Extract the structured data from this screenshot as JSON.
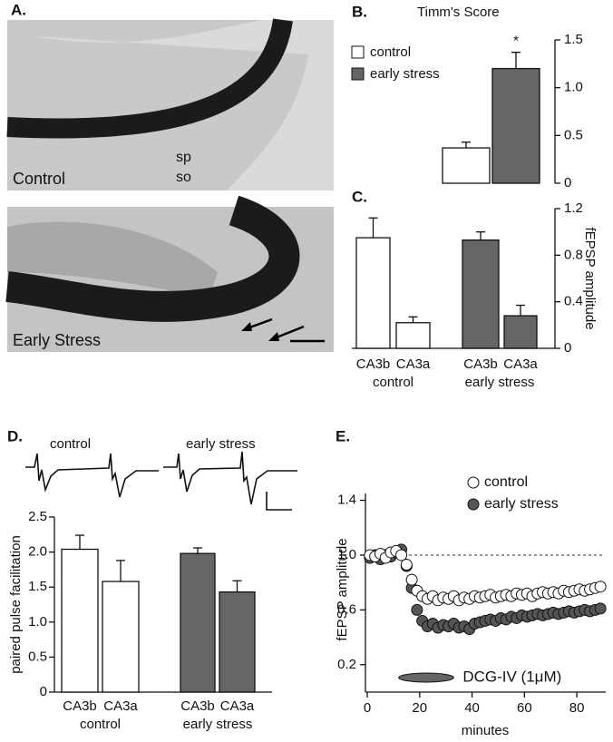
{
  "panel_labels": [
    "A.",
    "B.",
    "C.",
    "D.",
    "E."
  ],
  "micrographs": {
    "control_label": "Control",
    "sp": "sp",
    "so": "so",
    "stress_label": "Early Stress"
  },
  "chart_data": [
    {
      "type": "bar",
      "title": "Timm's Score",
      "legend": "left",
      "significance": "*",
      "series": [
        {
          "name": "control",
          "color": "#ffffff",
          "values": [
            0.37
          ],
          "errors": [
            0.06
          ]
        },
        {
          "name": "early stress",
          "color": "#666666",
          "values": [
            1.2
          ],
          "errors": [
            0.17
          ]
        }
      ],
      "ylim": [
        0,
        1.5
      ],
      "yticks": [
        0,
        0.5,
        {
          "value": 1,
          "label": "1.0"
        },
        1.5
      ]
    },
    {
      "type": "bar",
      "y_label": "fEPSP amplitude",
      "categories": [
        "CA3b",
        "CA3a"
      ],
      "series": [
        {
          "name": "control",
          "color": "#ffffff",
          "values": [
            0.95,
            0.22
          ],
          "errors": [
            0.17,
            0.05
          ]
        },
        {
          "name": "early stress",
          "color": "#666666",
          "values": [
            0.93,
            0.28
          ],
          "errors": [
            0.07,
            0.09
          ]
        }
      ],
      "ylim": [
        0,
        1.2
      ],
      "yticks": [
        0,
        0.4,
        0.8,
        1.2
      ]
    },
    {
      "type": "bar",
      "y_label": "paired pulse facilitation",
      "categories": [
        "CA3b",
        "CA3a"
      ],
      "series": [
        {
          "name": "control",
          "color": "#ffffff",
          "values": [
            2.04,
            1.58
          ],
          "errors": [
            0.2,
            0.3
          ]
        },
        {
          "name": "early stress",
          "color": "#666666",
          "values": [
            1.98,
            1.43
          ],
          "errors": [
            0.08,
            0.16
          ]
        }
      ],
      "ylim": [
        0,
        2.5
      ],
      "yticks": [
        0,
        0.5,
        {
          "value": 1,
          "label": "1.0"
        },
        1.5,
        {
          "value": 2,
          "label": "2.0"
        },
        2.5
      ]
    },
    {
      "type": "scatter",
      "x_label": "minutes",
      "y_label": "fEPSP amplitude",
      "reference_line": 1,
      "application": {
        "label": "DCG-IV (1μM)",
        "start": 12,
        "end": 33
      },
      "x": [
        1,
        3,
        5,
        7,
        9,
        11,
        13,
        15,
        17,
        19,
        21,
        23,
        25,
        27,
        29,
        31,
        33,
        35,
        37,
        39,
        41,
        43,
        45,
        47,
        49,
        51,
        53,
        55,
        57,
        59,
        61,
        63,
        65,
        67,
        69,
        71,
        73,
        75,
        77,
        79,
        81,
        83,
        85,
        87,
        89
      ],
      "series": [
        {
          "name": "control",
          "color": "#ffffff",
          "values": [
            1.0,
            0.99,
            1.01,
            0.98,
            1.02,
            1.03,
            1.0,
            0.93,
            0.82,
            0.74,
            0.7,
            0.68,
            0.7,
            0.67,
            0.69,
            0.68,
            0.7,
            0.67,
            0.69,
            0.68,
            0.7,
            0.69,
            0.7,
            0.71,
            0.69,
            0.7,
            0.71,
            0.7,
            0.72,
            0.71,
            0.72,
            0.7,
            0.72,
            0.73,
            0.72,
            0.73,
            0.72,
            0.74,
            0.73,
            0.74,
            0.75,
            0.74,
            0.75,
            0.76,
            0.77
          ]
        },
        {
          "name": "early stress",
          "color": "#555555",
          "values": [
            0.98,
            1.0,
            0.97,
            1.0,
            0.99,
            1.02,
            1.04,
            0.92,
            0.76,
            0.6,
            0.52,
            0.48,
            0.5,
            0.47,
            0.49,
            0.48,
            0.5,
            0.47,
            0.48,
            0.46,
            0.5,
            0.51,
            0.52,
            0.53,
            0.52,
            0.54,
            0.53,
            0.55,
            0.54,
            0.56,
            0.55,
            0.56,
            0.57,
            0.56,
            0.57,
            0.58,
            0.57,
            0.58,
            0.59,
            0.58,
            0.59,
            0.6,
            0.59,
            0.6,
            0.61
          ]
        }
      ],
      "xlim": [
        0,
        90
      ],
      "xticks": [
        0,
        20,
        40,
        60,
        80
      ],
      "ylim": [
        0,
        1.45
      ],
      "yticks": [
        0.2,
        0.6,
        {
          "value": 1,
          "label": "1.0"
        },
        1.4
      ]
    }
  ]
}
